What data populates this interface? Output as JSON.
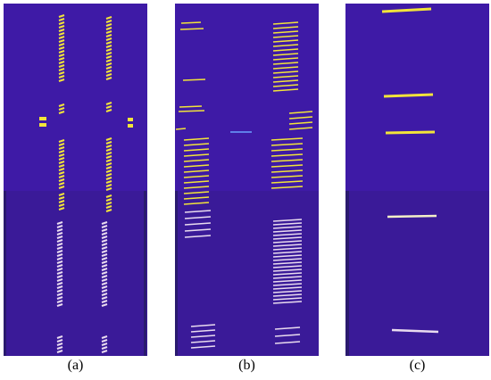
{
  "figure": {
    "panels": [
      {
        "id": "a",
        "caption": "(a)"
      },
      {
        "id": "b",
        "caption": "(b)"
      },
      {
        "id": "c",
        "caption": "(c)"
      }
    ],
    "colors": {
      "background": "#3e1aa6",
      "stripe_yellow": "#f2e43a",
      "stripe_pink": "#e9dbef",
      "shadow": "#2a1a6e"
    }
  }
}
